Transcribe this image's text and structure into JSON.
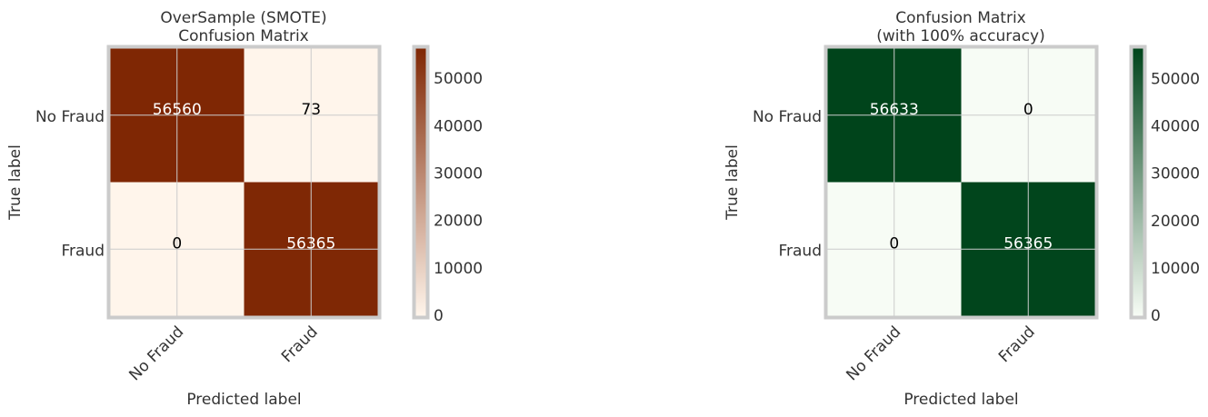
{
  "chart_data": [
    {
      "type": "heatmap",
      "title": "OverSample (SMOTE)\nConfusion Matrix",
      "xlabel": "Predicted label",
      "ylabel": "True label",
      "row_labels": [
        "No Fraud",
        "Fraud"
      ],
      "col_labels": [
        "No Fraud",
        "Fraud"
      ],
      "matrix": [
        [
          56560,
          73
        ],
        [
          0,
          56365
        ]
      ],
      "colormap": "Oranges",
      "color_low": "#fff5eb",
      "color_high": "#7f2704",
      "color_range": [
        0,
        56560
      ],
      "colorbar_ticks": [
        0,
        10000,
        20000,
        30000,
        40000,
        50000
      ],
      "grid": true
    },
    {
      "type": "heatmap",
      "title": "Confusion Matrix\n(with 100% accuracy)",
      "xlabel": "Predicted label",
      "ylabel": "True label",
      "row_labels": [
        "No Fraud",
        "Fraud"
      ],
      "col_labels": [
        "No Fraud",
        "Fraud"
      ],
      "matrix": [
        [
          56633,
          0
        ],
        [
          0,
          56365
        ]
      ],
      "colormap": "Greens",
      "color_low": "#f7fcf5",
      "color_high": "#00441b",
      "color_range": [
        0,
        56633
      ],
      "colorbar_ticks": [
        0,
        10000,
        20000,
        30000,
        40000,
        50000
      ],
      "grid": true
    }
  ]
}
